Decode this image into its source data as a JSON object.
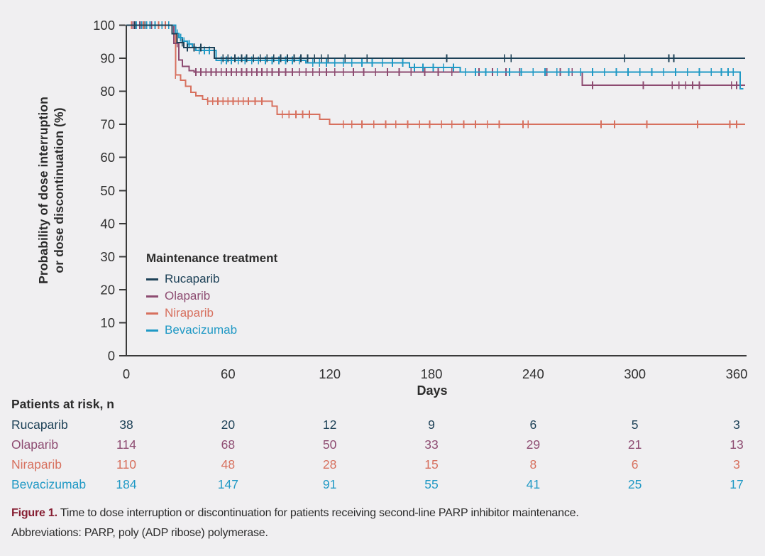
{
  "chart_data": {
    "type": "line",
    "subtype": "kaplan-meier-step",
    "xlabel": "Days",
    "ylabel_line1": "Probability of dose interruption",
    "ylabel_line2": "or dose discontinuation (%)",
    "xlim": [
      0,
      365
    ],
    "ylim": [
      0,
      100
    ],
    "x_ticks": [
      0,
      60,
      120,
      180,
      240,
      300,
      360
    ],
    "y_ticks": [
      0,
      10,
      20,
      30,
      40,
      50,
      60,
      70,
      80,
      90,
      100
    ],
    "grid": "off",
    "legend_position": "inside-left-middle",
    "legend_title": "Maintenance treatment",
    "axis_color": "#3a3a3a",
    "series": [
      {
        "name": "Niraparib",
        "color": "#d7705e",
        "end_day": 365,
        "steps": [
          [
            29,
            85
          ],
          [
            32,
            83.3
          ],
          [
            35,
            81.5
          ],
          [
            38,
            79.7
          ],
          [
            41,
            78.6
          ],
          [
            45,
            77.5
          ],
          [
            48,
            77
          ],
          [
            86,
            75.5
          ],
          [
            89,
            73
          ],
          [
            114,
            71.5
          ],
          [
            120,
            70
          ]
        ],
        "censors": [
          3,
          10,
          19,
          23,
          29,
          48,
          51,
          54,
          57,
          60,
          63,
          66,
          69,
          72,
          76,
          80,
          92,
          96,
          100,
          104,
          108,
          128,
          133,
          139,
          146,
          153,
          159,
          166,
          173,
          179,
          186,
          192,
          199,
          206,
          213,
          220,
          234,
          237,
          280,
          288,
          307,
          337,
          356,
          360
        ]
      },
      {
        "name": "Olaparib",
        "color": "#8d4b71",
        "end_day": 365,
        "steps": [
          [
            28,
            94.5
          ],
          [
            31,
            89.5
          ],
          [
            33,
            87.5
          ],
          [
            37,
            86.2
          ],
          [
            40,
            85.8
          ],
          [
            269,
            81.8
          ]
        ],
        "censors": [
          4,
          8,
          15,
          30,
          41,
          44,
          47,
          50,
          53,
          56,
          59,
          62,
          65,
          68,
          71,
          74,
          77,
          80,
          83,
          86,
          90,
          94,
          98,
          102,
          106,
          110,
          114,
          118,
          123,
          128,
          134,
          140,
          147,
          154,
          161,
          168,
          176,
          184,
          192,
          200,
          208,
          216,
          224,
          232,
          240,
          248,
          256,
          263,
          275,
          305,
          322,
          326,
          330,
          334,
          338,
          357,
          360
        ]
      },
      {
        "name": "Bevacizumab",
        "color": "#2099c5",
        "end_day": 364,
        "steps": [
          [
            29,
            97.5
          ],
          [
            31,
            96.2
          ],
          [
            33,
            95.2
          ],
          [
            36,
            94.3
          ],
          [
            39,
            93.3
          ],
          [
            41,
            92.4
          ],
          [
            53,
            89.4
          ],
          [
            106,
            88.6
          ],
          [
            167,
            87.2
          ],
          [
            197,
            85.8
          ],
          [
            362,
            80.8
          ]
        ],
        "censors": [
          6,
          9,
          12,
          14,
          17,
          21,
          25,
          30,
          32,
          34,
          37,
          40,
          43,
          46,
          49,
          56,
          59,
          62,
          66,
          70,
          74,
          78,
          82,
          86,
          90,
          94,
          98,
          102,
          110,
          114,
          118,
          123,
          128,
          133,
          139,
          145,
          151,
          157,
          163,
          170,
          175,
          181,
          187,
          193,
          200,
          206,
          212,
          219,
          226,
          233,
          240,
          247,
          254,
          261,
          268,
          275,
          282,
          289,
          296,
          303,
          310,
          317,
          324,
          331,
          338,
          345,
          351,
          355,
          358
        ]
      },
      {
        "name": "Rucaparib",
        "color": "#1d4157",
        "end_day": 365,
        "steps": [
          [
            27,
            97.4
          ],
          [
            30,
            94.7
          ],
          [
            34,
            93.2
          ],
          [
            52,
            90
          ]
        ],
        "censors": [
          5,
          11,
          33,
          36,
          40,
          44,
          57,
          60,
          64,
          68,
          71,
          75,
          79,
          83,
          87,
          91,
          95,
          99,
          103,
          107,
          111,
          115,
          119,
          129,
          142,
          189,
          223,
          227,
          294,
          320,
          323
        ]
      }
    ],
    "legend_order": [
      "Rucaparib",
      "Olaparib",
      "Niraparib",
      "Bevacizumab"
    ]
  },
  "risk_table": {
    "header": "Patients at risk, n",
    "columns_days": [
      0,
      60,
      120,
      180,
      240,
      300,
      360
    ],
    "rows": [
      {
        "label": "Rucaparib",
        "values": [
          "38",
          "20",
          "12",
          "9",
          "6",
          "5",
          "3"
        ]
      },
      {
        "label": "Olaparib",
        "values": [
          "114",
          "68",
          "50",
          "33",
          "29",
          "21",
          "13"
        ]
      },
      {
        "label": "Niraparib",
        "values": [
          "110",
          "48",
          "28",
          "15",
          "8",
          "6",
          "3"
        ]
      },
      {
        "label": "Bevacizumab",
        "values": [
          "184",
          "147",
          "91",
          "55",
          "41",
          "25",
          "17"
        ]
      }
    ]
  },
  "caption": {
    "label": "Figure 1.",
    "text": "Time to dose interruption or discontinuation for patients receiving second-line PARP inhibitor maintenance.",
    "abbrev": "Abbreviations: PARP, poly (ADP ribose) polymerase."
  }
}
